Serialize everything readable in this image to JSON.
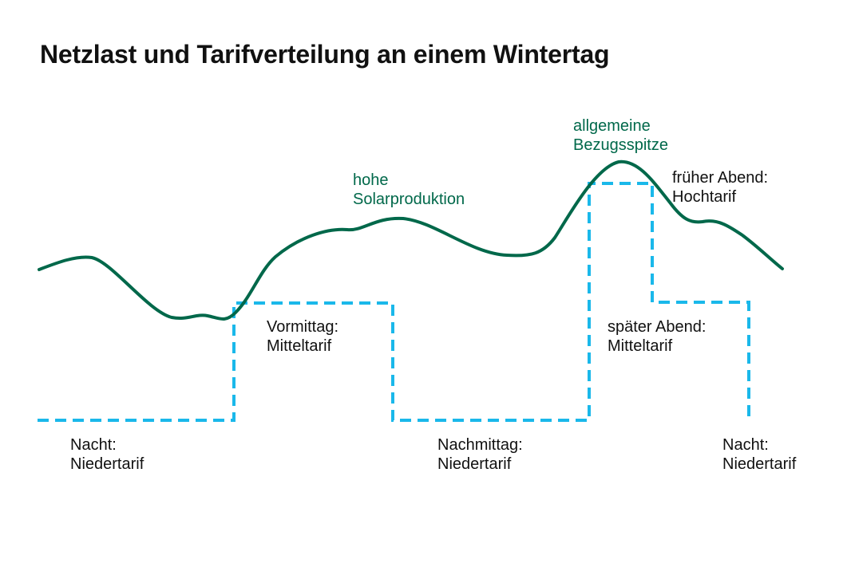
{
  "title": "Netzlast und Tarifverteilung an einem Wintertag",
  "colors": {
    "load_curve": "#00684a",
    "tariff_line": "#1ab8ea",
    "text": "#111111"
  },
  "annotations": {
    "solar": [
      "hohe",
      "Solarproduktion"
    ],
    "peak": [
      "allgemeine",
      "Bezugsspitze"
    ]
  },
  "tariffs": [
    {
      "line1": "Nacht:",
      "line2": "Niedertarif"
    },
    {
      "line1": "Vormittag:",
      "line2": "Mitteltarif"
    },
    {
      "line1": "Nachmittag:",
      "line2": "Niedertarif"
    },
    {
      "line1": "früher Abend:",
      "line2": "Hochtarif"
    },
    {
      "line1": "später Abend:",
      "line2": "Mitteltarif"
    },
    {
      "line1": "Nacht:",
      "line2": "Niedertarif"
    }
  ]
}
